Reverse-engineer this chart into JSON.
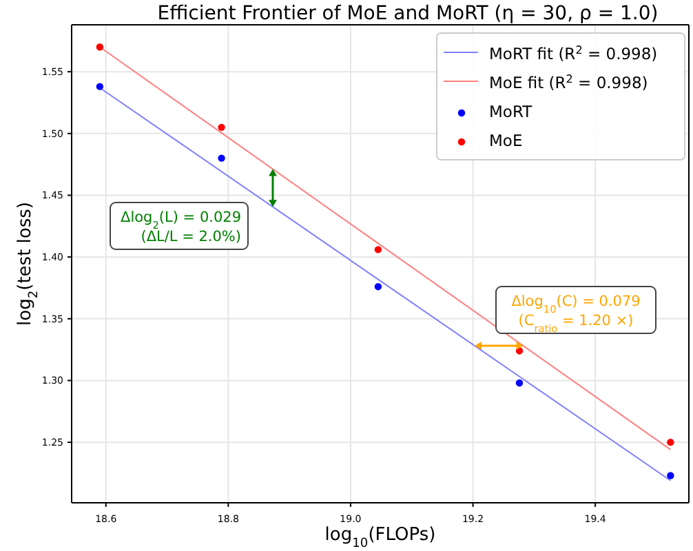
{
  "chart_data": {
    "type": "scatter",
    "title": "Efficient Frontier of MoE and MoRT (η = 30, ρ = 1.0)",
    "xlabel": "log$_{10}$(FLOPs)",
    "ylabel": "log$_{2}$(test loss)",
    "xlim": [
      18.544,
      19.553
    ],
    "ylim": [
      1.201,
      1.588
    ],
    "xticks": [
      18.6,
      18.8,
      {
        "value": 19,
        "label": "19.0"
      },
      19.2,
      19.4
    ],
    "yticks": [
      1.25,
      {
        "value": 1.3,
        "label": "1.30"
      },
      1.35,
      {
        "value": 1.4,
        "label": "1.40"
      },
      1.45,
      {
        "value": 1.5,
        "label": "1.50"
      },
      1.55
    ],
    "grid": true,
    "legend": "top right",
    "series": [
      {
        "name": "MoRT fit (R$^{2}$ = 0.998)",
        "type": "line",
        "color": "#8080ff",
        "x": [
          18.59,
          19.523
        ],
        "values": [
          1.537,
          1.219
        ]
      },
      {
        "name": "MoE fit (R$^{2}$ = 0.998)",
        "type": "line",
        "color": "#ff8080",
        "x": [
          18.59,
          19.523
        ],
        "values": [
          1.57,
          1.244
        ]
      },
      {
        "name": "MoRT",
        "marker": "circle",
        "color": "#0000ff",
        "x": [
          18.59,
          18.789,
          19.045,
          19.276,
          19.523
        ],
        "values": [
          1.538,
          1.48,
          1.376,
          1.298,
          1.223
        ]
      },
      {
        "name": "MoE",
        "marker": "circle",
        "color": "#ff0000",
        "x": [
          18.59,
          18.789,
          19.045,
          19.276,
          19.523
        ],
        "values": [
          1.57,
          1.505,
          1.406,
          1.324,
          1.25
        ]
      }
    ],
    "annotations": [
      "Δlog$_{2}$(L) = 0.029\n(ΔL/L = 2.0%)",
      "Δlog$_{10}$(C) = 0.079\n(C$_{ratio}$ = 1.20 ×)"
    ]
  }
}
